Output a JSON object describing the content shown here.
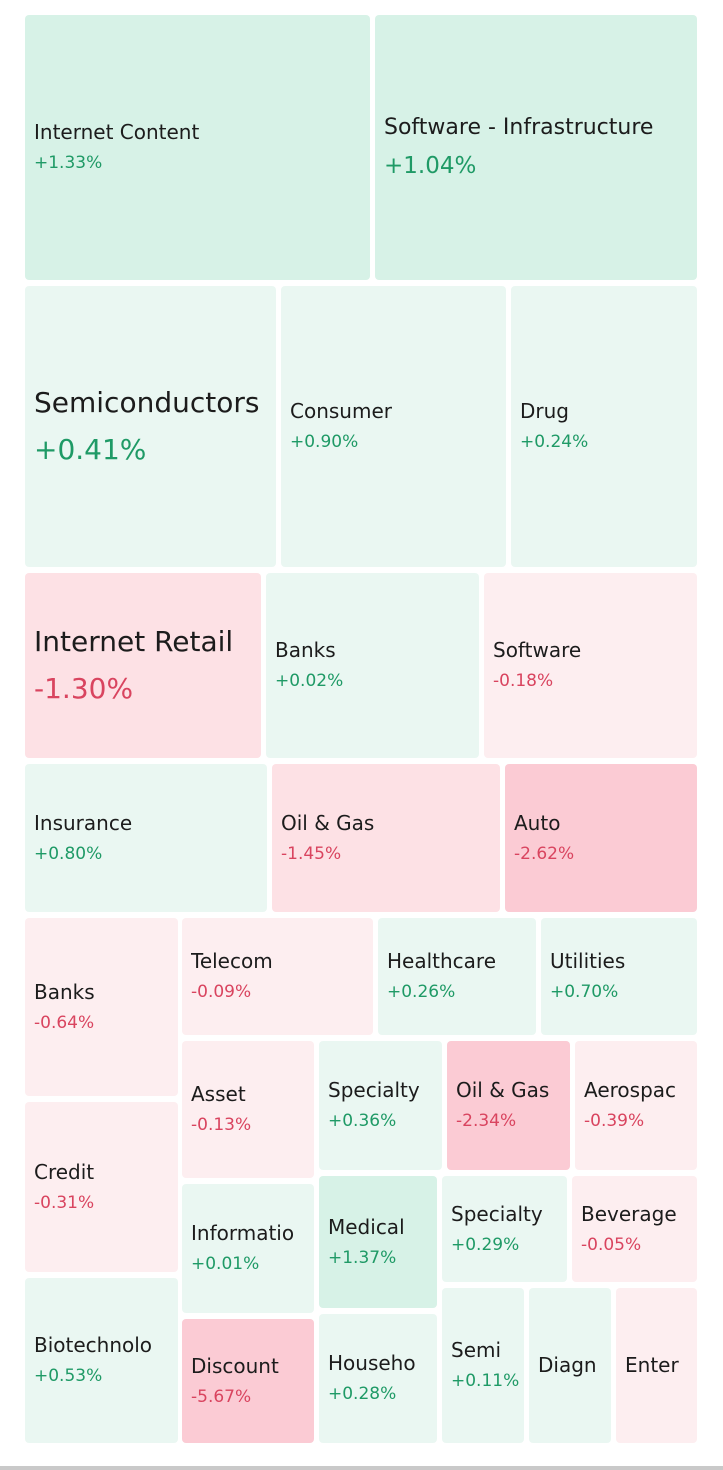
{
  "colors": {
    "pos_text": "#1f9a66",
    "neg_text": "#d9445f",
    "pos_strong_bg": "#d7f2e7",
    "pos_light_bg": "#eaf7f2",
    "neg_light_bg": "#fdeef0",
    "neg_mid_bg": "#fde1e5",
    "neg_strong_bg": "#fbcbd4"
  },
  "chart_data": {
    "type": "treemap",
    "items": [
      {
        "name": "Internet Content",
        "change": "+1.33%"
      },
      {
        "name": "Software - Infrastructure",
        "change": "+1.04%"
      },
      {
        "name": "Semiconductors",
        "change": "+0.41%"
      },
      {
        "name": "Consumer",
        "change": "+0.90%"
      },
      {
        "name": "Drug",
        "change": "+0.24%"
      },
      {
        "name": "Internet Retail",
        "change": "-1.30%"
      },
      {
        "name": "Banks",
        "change": "+0.02%"
      },
      {
        "name": "Software",
        "change": "-0.18%"
      },
      {
        "name": "Insurance",
        "change": "+0.80%"
      },
      {
        "name": "Oil & Gas",
        "change": "-1.45%"
      },
      {
        "name": "Auto",
        "change": "-2.62%"
      },
      {
        "name": "Banks",
        "change": "-0.64%"
      },
      {
        "name": "Telecom",
        "change": "-0.09%"
      },
      {
        "name": "Healthcare",
        "change": "+0.26%"
      },
      {
        "name": "Utilities",
        "change": "+0.70%"
      },
      {
        "name": "Asset",
        "change": "-0.13%"
      },
      {
        "name": "Specialty",
        "change": "+0.36%"
      },
      {
        "name": "Oil & Gas",
        "change": "-2.34%"
      },
      {
        "name": "Aerospac",
        "change": "-0.39%"
      },
      {
        "name": "Credit",
        "change": "-0.31%"
      },
      {
        "name": "Informatio",
        "change": "+0.01%"
      },
      {
        "name": "Medical",
        "change": "+1.37%"
      },
      {
        "name": "Specialty",
        "change": "+0.29%"
      },
      {
        "name": "Beverage",
        "change": "-0.05%"
      },
      {
        "name": "Biotechnolo",
        "change": "+0.53%"
      },
      {
        "name": "Discount",
        "change": "-5.67%"
      },
      {
        "name": "Househo",
        "change": "+0.28%"
      },
      {
        "name": "Semi",
        "change": "+0.11%"
      },
      {
        "name": "Diagn",
        "change": ""
      },
      {
        "name": "Enter",
        "change": ""
      }
    ]
  }
}
